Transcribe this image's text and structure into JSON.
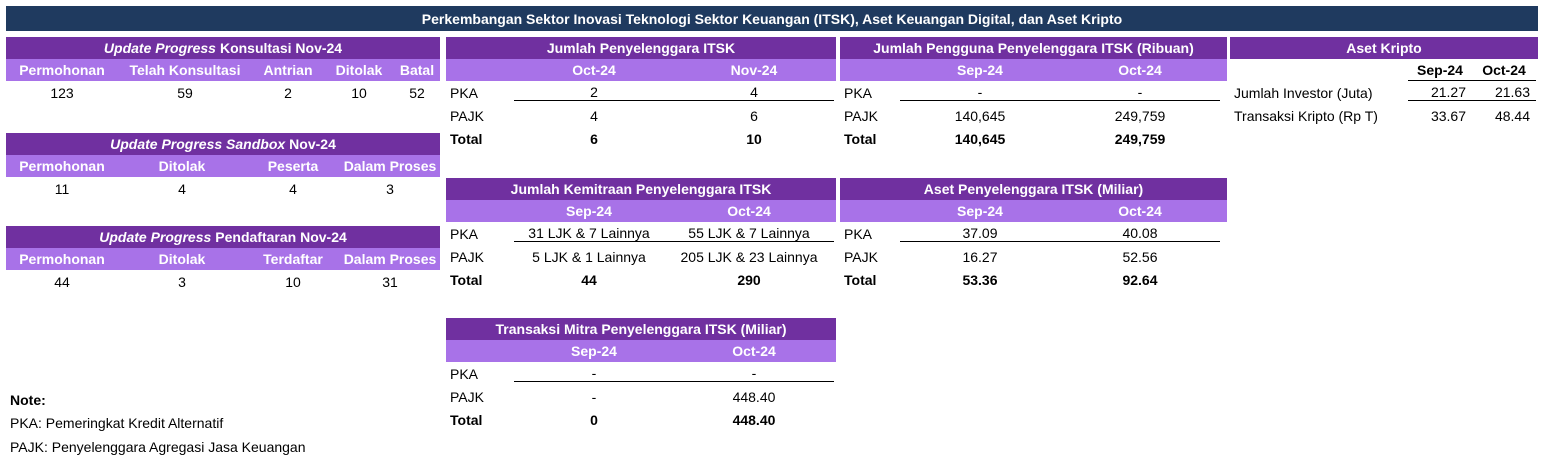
{
  "title": "Perkembangan Sektor Inovasi Teknologi Sektor Keuangan (ITSK), Aset Keuangan Digital, dan Aset Kripto",
  "konsultasi": {
    "title_italic": "Update Progress",
    "title_rest": "Konsultasi  Nov-24",
    "headers": [
      "Permohonan",
      "Telah Konsultasi",
      "Antrian",
      "Ditolak",
      "Batal"
    ],
    "values": [
      "123",
      "59",
      "2",
      "10",
      "52"
    ]
  },
  "sandbox": {
    "title_italic": "Update Progress Sandbox",
    "title_rest": "Nov-24",
    "headers": [
      "Permohonan",
      "Ditolak",
      "Peserta",
      "Dalam Proses"
    ],
    "values": [
      "11",
      "4",
      "4",
      "3"
    ]
  },
  "pendaftaran": {
    "title_italic": "Update Progress",
    "title_rest": "Pendaftaran  Nov-24",
    "headers": [
      "Permohonan",
      "Ditolak",
      "Terdaftar",
      "Dalam Proses"
    ],
    "values": [
      "44",
      "3",
      "10",
      "31"
    ]
  },
  "jumlah_penyelenggara": {
    "title": "Jumlah Penyelenggara ITSK",
    "cols": [
      "Oct-24",
      "Nov-24"
    ],
    "rows": [
      {
        "label": "PKA",
        "v1": "2",
        "v2": "4"
      },
      {
        "label": "PAJK",
        "v1": "4",
        "v2": "6"
      },
      {
        "label": "Total",
        "v1": "6",
        "v2": "10"
      }
    ]
  },
  "jumlah_pengguna": {
    "title": "Jumlah Pengguna Penyelenggara ITSK (Ribuan)",
    "cols": [
      "Sep-24",
      "Oct-24"
    ],
    "rows": [
      {
        "label": "PKA",
        "v1": "-",
        "v2": "-"
      },
      {
        "label": "PAJK",
        "v1": "140,645",
        "v2": "249,759"
      },
      {
        "label": "Total",
        "v1": "140,645",
        "v2": "249,759"
      }
    ]
  },
  "aset_kripto": {
    "title": "Aset Kripto",
    "cols": [
      "Sep-24",
      "Oct-24"
    ],
    "rows": [
      {
        "label": "Jumlah Investor (Juta)",
        "v1": "21.27",
        "v2": "21.63"
      },
      {
        "label": "Transaksi Kripto (Rp T)",
        "v1": "33.67",
        "v2": "48.44"
      }
    ]
  },
  "kemitraan": {
    "title": "Jumlah Kemitraan Penyelenggara ITSK",
    "cols": [
      "Sep-24",
      "Oct-24"
    ],
    "rows": [
      {
        "label": "PKA",
        "v1": "31 LJK & 7 Lainnya",
        "v2": "55 LJK & 7 Lainnya"
      },
      {
        "label": "PAJK",
        "v1": "5 LJK & 1 Lainnya",
        "v2": "205 LJK & 23 Lainnya"
      },
      {
        "label": "Total",
        "v1": "44",
        "v2": "290"
      }
    ]
  },
  "aset_penyelenggara": {
    "title": "Aset Penyelenggara ITSK (Miliar)",
    "cols": [
      "Sep-24",
      "Oct-24"
    ],
    "rows": [
      {
        "label": "PKA",
        "v1": "37.09",
        "v2": "40.08"
      },
      {
        "label": "PAJK",
        "v1": "16.27",
        "v2": "52.56"
      },
      {
        "label": "Total",
        "v1": "53.36",
        "v2": "92.64"
      }
    ]
  },
  "transaksi_mitra": {
    "title": "Transaksi Mitra Penyelenggara ITSK (Miliar)",
    "cols": [
      "Sep-24",
      "Oct-24"
    ],
    "rows": [
      {
        "label": "PKA",
        "v1": "-",
        "v2": "-"
      },
      {
        "label": "PAJK",
        "v1": "-",
        "v2": "448.40"
      },
      {
        "label": "Total",
        "v1": "0",
        "v2": "448.40"
      }
    ]
  },
  "notes": {
    "heading": "Note:",
    "lines": [
      "PKA: Pemeringkat Kredit Alternatif",
      "PAJK: Penyelenggara Agregasi Jasa Keuangan"
    ]
  },
  "colors": {
    "title_bg": "#1f3a5f",
    "header_bg": "#7030a0",
    "subheader_bg": "#a872e8"
  }
}
